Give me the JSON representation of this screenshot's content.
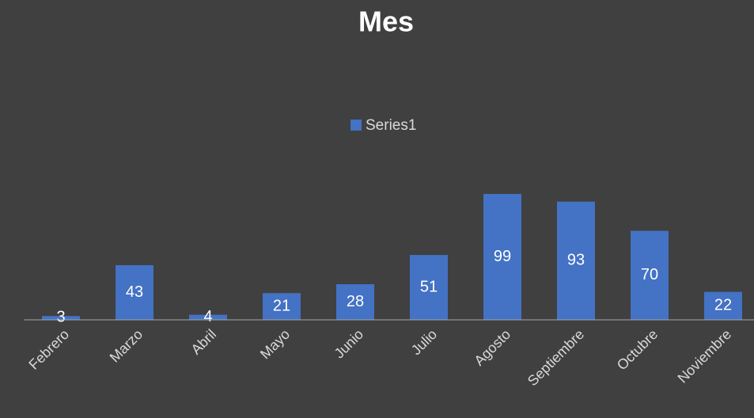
{
  "chart_data": {
    "type": "bar",
    "title": "Mes",
    "categories": [
      "Febrero",
      "Marzo",
      "Abril",
      "Mayo",
      "Junio",
      "Julio",
      "Agosto",
      "Septiembre",
      "Octubre",
      "Noviembre"
    ],
    "series": [
      {
        "name": "Series1",
        "color": "#4472c4",
        "values": [
          3,
          43,
          4,
          21,
          28,
          51,
          99,
          93,
          70,
          22
        ]
      }
    ],
    "ylim": [
      0,
      100
    ],
    "legend": "top"
  }
}
